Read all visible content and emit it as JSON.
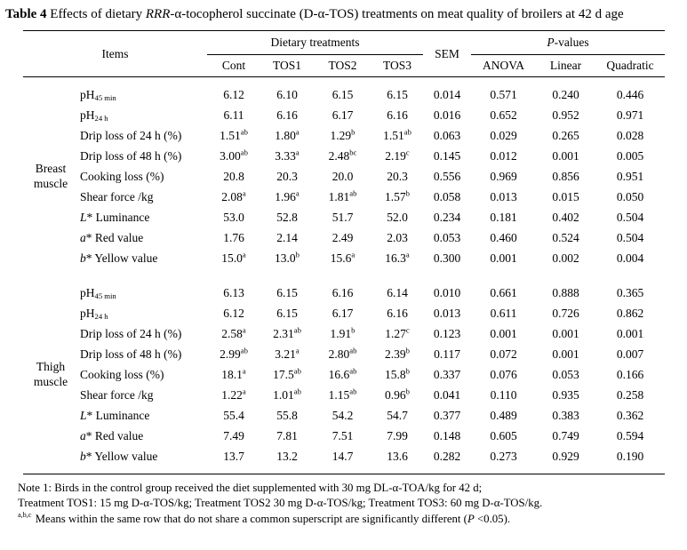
{
  "title": {
    "label": "Table 4",
    "pre": " Effects of dietary ",
    "italic": "RRR",
    "post": "-α-tocopherol succinate (D-α-TOS) treatments on meat quality of broilers at 42 d age"
  },
  "table": {
    "header": {
      "items": "Items",
      "dietary": "Dietary treatments",
      "sem": "SEM",
      "p_italic": "P",
      "p_rest": "-values",
      "treatments": [
        "Cont",
        "TOS1",
        "TOS2",
        "TOS3"
      ],
      "p_tests": [
        "ANOVA",
        "Linear",
        "Quadratic"
      ]
    },
    "groups": [
      {
        "name": "Breast muscle",
        "name_lines": [
          "Breast",
          "muscle"
        ],
        "rows": [
          {
            "label": [
              [
                "",
                "pH"
              ],
              [
                "sub",
                "45 min"
              ]
            ],
            "cells": [
              "6.12",
              "6.10",
              "6.15",
              "6.15",
              "0.014",
              "0.571",
              "0.240",
              "0.446"
            ]
          },
          {
            "label": [
              [
                "",
                "pH"
              ],
              [
                "sub",
                "24 h"
              ]
            ],
            "cells": [
              "6.11",
              "6.16",
              "6.17",
              "6.16",
              "0.016",
              "0.652",
              "0.952",
              "0.971"
            ]
          },
          {
            "label": [
              [
                "",
                "Drip loss of 24 h (%)"
              ]
            ],
            "cells": [
              "1.51^ab",
              "1.80^a",
              "1.29^b",
              "1.51^ab",
              "0.063",
              "0.029",
              "0.265",
              "0.028"
            ]
          },
          {
            "label": [
              [
                "",
                "Drip loss of 48 h (%)"
              ]
            ],
            "cells": [
              "3.00^ab",
              "3.33^a",
              "2.48^bc",
              "2.19^c",
              "0.145",
              "0.012",
              "0.001",
              "0.005"
            ]
          },
          {
            "label": [
              [
                "",
                "Cooking loss (%)"
              ]
            ],
            "cells": [
              "20.8",
              "20.3",
              "20.0",
              "20.3",
              "0.556",
              "0.969",
              "0.856",
              "0.951"
            ]
          },
          {
            "label": [
              [
                "",
                "Shear force /kg"
              ]
            ],
            "cells": [
              "2.08^a",
              "1.96^a",
              "1.81^ab",
              "1.57^b",
              "0.058",
              "0.013",
              "0.015",
              "0.050"
            ]
          },
          {
            "label": [
              [
                "i",
                "L"
              ],
              [
                "",
                "* Luminance"
              ]
            ],
            "cells": [
              "53.0",
              "52.8",
              "51.7",
              "52.0",
              "0.234",
              "0.181",
              "0.402",
              "0.504"
            ]
          },
          {
            "label": [
              [
                "i",
                "a"
              ],
              [
                "",
                "* Red value"
              ]
            ],
            "cells": [
              "1.76",
              "2.14",
              "2.49",
              "2.03",
              "0.053",
              "0.460",
              "0.524",
              "0.504"
            ]
          },
          {
            "label": [
              [
                "i",
                "b"
              ],
              [
                "",
                "* Yellow value"
              ]
            ],
            "cells": [
              "15.0^a",
              "13.0^b",
              "15.6^a",
              "16.3^a",
              "0.300",
              "0.001",
              "0.002",
              "0.004"
            ]
          }
        ]
      },
      {
        "name": "Thigh muscle",
        "name_lines": [
          "Thigh",
          "muscle"
        ],
        "rows": [
          {
            "label": [
              [
                "",
                "pH"
              ],
              [
                "sub",
                "45 min"
              ]
            ],
            "cells": [
              "6.13",
              "6.15",
              "6.16",
              "6.14",
              "0.010",
              "0.661",
              "0.888",
              "0.365"
            ]
          },
          {
            "label": [
              [
                "",
                "pH"
              ],
              [
                "sub",
                "24 h"
              ]
            ],
            "cells": [
              "6.12",
              "6.15",
              "6.17",
              "6.16",
              "0.013",
              "0.611",
              "0.726",
              "0.862"
            ]
          },
          {
            "label": [
              [
                "",
                "Drip loss of 24 h (%)"
              ]
            ],
            "cells": [
              "2.58^a",
              "2.31^ab",
              "1.91^b",
              "1.27^c",
              "0.123",
              "0.001",
              "0.001",
              "0.001"
            ]
          },
          {
            "label": [
              [
                "",
                "Drip loss of 48 h (%)"
              ]
            ],
            "cells": [
              "2.99^ab",
              "3.21^a",
              "2.80^ab",
              "2.39^b",
              "0.117",
              "0.072",
              "0.001",
              "0.007"
            ]
          },
          {
            "label": [
              [
                "",
                "Cooking loss (%)"
              ]
            ],
            "cells": [
              "18.1^a",
              "17.5^ab",
              "16.6^ab",
              "15.8^b",
              "0.337",
              "0.076",
              "0.053",
              "0.166"
            ]
          },
          {
            "label": [
              [
                "",
                "Shear force /kg"
              ]
            ],
            "cells": [
              "1.22^a",
              "1.01^ab",
              "1.15^ab",
              "0.96^b",
              "0.041",
              "0.110",
              "0.935",
              "0.258"
            ]
          },
          {
            "label": [
              [
                "i",
                "L"
              ],
              [
                "",
                "* Luminance"
              ]
            ],
            "cells": [
              "55.4",
              "55.8",
              "54.2",
              "54.7",
              "0.377",
              "0.489",
              "0.383",
              "0.362"
            ]
          },
          {
            "label": [
              [
                "i",
                "a"
              ],
              [
                "",
                "* Red value"
              ]
            ],
            "cells": [
              "7.49",
              "7.81",
              "7.51",
              "7.99",
              "0.148",
              "0.605",
              "0.749",
              "0.594"
            ]
          },
          {
            "label": [
              [
                "i",
                "b"
              ],
              [
                "",
                "* Yellow value"
              ]
            ],
            "cells": [
              "13.7",
              "13.2",
              "14.7",
              "13.6",
              "0.282",
              "0.273",
              "0.929",
              "0.190"
            ]
          }
        ]
      }
    ]
  },
  "notes": [
    [
      [
        "",
        "Note 1: Birds in the control group received the diet supplemented with 30 mg DL-α-TOA/kg for 42 d;"
      ]
    ],
    [
      [
        "",
        "Treatment TOS1: 15 mg D-α-TOS/kg; Treatment TOS2 30 mg D-α-TOS/kg; Treatment TOS3: 60 mg D-α-TOS/kg."
      ]
    ],
    [
      [
        "sup",
        "a,b,c"
      ],
      [
        "",
        " Means within the same row that do not share a common superscript are significantly different ("
      ],
      [
        "i",
        "P"
      ],
      [
        "",
        " <0.05)."
      ]
    ]
  ]
}
